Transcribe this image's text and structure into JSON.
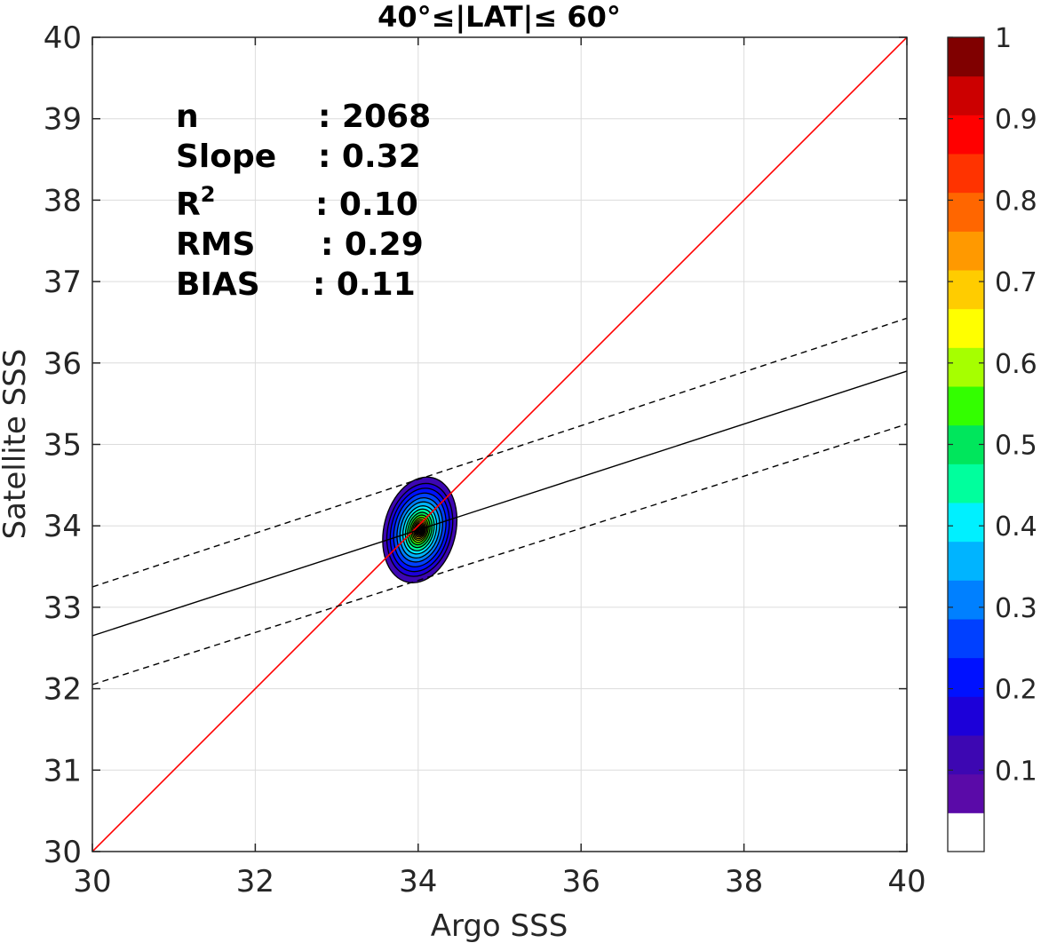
{
  "chart_data": {
    "type": "contour",
    "title": "40°≤|LAT|≤ 60°",
    "xlabel": "Argo SSS",
    "ylabel": "Satellite SSS",
    "xlim": [
      30,
      40
    ],
    "ylim": [
      30,
      40
    ],
    "xticks": [
      "30",
      "32",
      "34",
      "36",
      "38",
      "40"
    ],
    "yticks": [
      "30",
      "31",
      "32",
      "33",
      "34",
      "35",
      "36",
      "37",
      "38",
      "39",
      "40"
    ],
    "grid": true,
    "stats": [
      {
        "label": "n",
        "sep": ":",
        "value": "2068"
      },
      {
        "label": "Slope",
        "sep": ":",
        "value": "0.32"
      },
      {
        "label": "R",
        "sup": "2",
        "sep": ":",
        "value": "0.10"
      },
      {
        "label": "RMS",
        "sep": ":",
        "value": "0.29"
      },
      {
        "label": "BIAS",
        "sep": ":",
        "value": "0.11"
      }
    ],
    "one_to_one_line": {
      "x": [
        30,
        40
      ],
      "y": [
        30,
        40
      ],
      "color": "#ff0000"
    },
    "regression_line": {
      "x": [
        30,
        40
      ],
      "y": [
        32.65,
        35.9
      ],
      "color": "#000000"
    },
    "confidence_lines": [
      {
        "x": [
          30,
          40
        ],
        "y": [
          33.25,
          36.55
        ]
      },
      {
        "x": [
          30,
          40
        ],
        "y": [
          32.05,
          35.25
        ]
      }
    ],
    "density_contours": {
      "center": {
        "x": 34.02,
        "y": 33.95
      },
      "levels": [
        {
          "level": 0.05,
          "rx": 0.44,
          "ry": 0.66,
          "color": "#3d07b2"
        },
        {
          "level": 0.1,
          "rx": 0.39,
          "ry": 0.58,
          "color": "#1c00d9"
        },
        {
          "level": 0.15,
          "rx": 0.35,
          "ry": 0.52,
          "color": "#0011ff"
        },
        {
          "level": 0.2,
          "rx": 0.31,
          "ry": 0.46,
          "color": "#0040ff"
        },
        {
          "level": 0.25,
          "rx": 0.27,
          "ry": 0.4,
          "color": "#0080ff"
        },
        {
          "level": 0.3,
          "rx": 0.235,
          "ry": 0.35,
          "color": "#00b4ff"
        },
        {
          "level": 0.35,
          "rx": 0.2,
          "ry": 0.3,
          "color": "#00f0ff"
        },
        {
          "level": 0.4,
          "rx": 0.17,
          "ry": 0.26,
          "color": "#00ff9d"
        },
        {
          "level": 0.45,
          "rx": 0.145,
          "ry": 0.22,
          "color": "#00e65c"
        },
        {
          "level": 0.5,
          "rx": 0.12,
          "ry": 0.185,
          "color": "#33ff00"
        },
        {
          "level": 0.55,
          "rx": 0.1,
          "ry": 0.155,
          "color": "#a6ff00"
        },
        {
          "level": 0.6,
          "rx": 0.085,
          "ry": 0.13,
          "color": "#ffff00"
        },
        {
          "level": 0.65,
          "rx": 0.07,
          "ry": 0.11,
          "color": "#ffcc00"
        },
        {
          "level": 0.7,
          "rx": 0.058,
          "ry": 0.09,
          "color": "#ff9900"
        },
        {
          "level": 0.75,
          "rx": 0.047,
          "ry": 0.073,
          "color": "#ff6600"
        },
        {
          "level": 0.8,
          "rx": 0.037,
          "ry": 0.058,
          "color": "#ff3300"
        },
        {
          "level": 0.85,
          "rx": 0.028,
          "ry": 0.044,
          "color": "#ff0000"
        },
        {
          "level": 0.9,
          "rx": 0.019,
          "ry": 0.03,
          "color": "#cc0000"
        },
        {
          "level": 0.95,
          "rx": 0.01,
          "ry": 0.016,
          "color": "#800000"
        }
      ]
    },
    "colorbar": {
      "range": [
        0,
        1
      ],
      "ticks": [
        "0.1",
        "0.2",
        "0.3",
        "0.4",
        "0.5",
        "0.6",
        "0.7",
        "0.8",
        "0.9",
        "1"
      ],
      "bands": [
        "#ffffff",
        "#5a0aa8",
        "#3d07b2",
        "#1c00d9",
        "#0011ff",
        "#0040ff",
        "#0080ff",
        "#00b4ff",
        "#00f0ff",
        "#00ff9d",
        "#00e65c",
        "#33ff00",
        "#a6ff00",
        "#ffff00",
        "#ffcc00",
        "#ff9900",
        "#ff6600",
        "#ff3300",
        "#ff0000",
        "#cc0000",
        "#800000"
      ]
    }
  }
}
